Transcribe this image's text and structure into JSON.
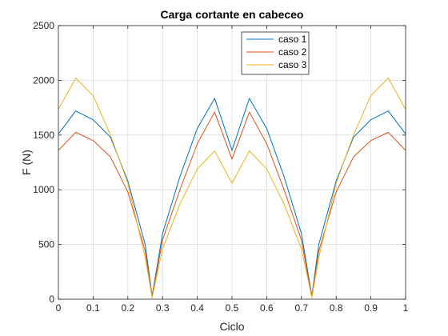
{
  "chart_data": {
    "type": "line",
    "title": "Carga cortante en cabeceo",
    "xlabel": "Ciclo",
    "ylabel": "F (N)",
    "xlim": [
      0,
      1
    ],
    "ylim": [
      0,
      2500
    ],
    "xticks": [
      0,
      0.1,
      0.2,
      0.3,
      0.4,
      0.5,
      0.6,
      0.7,
      0.8,
      0.9,
      1
    ],
    "xtick_labels": [
      "0",
      "0.1",
      "0.2",
      "0.3",
      "0.4",
      "0.5",
      "0.6",
      "0.7",
      "0.8",
      "0.9",
      "1"
    ],
    "yticks": [
      0,
      500,
      1000,
      1500,
      2000,
      2500
    ],
    "ytick_labels": [
      "0",
      "500",
      "1000",
      "1500",
      "2000",
      "2500"
    ],
    "grid": true,
    "legend_position": "top-right",
    "series": [
      {
        "name": "caso 1",
        "color": "#0072BD",
        "x": [
          0,
          0.05,
          0.1,
          0.15,
          0.2,
          0.25,
          0.27,
          0.3,
          0.35,
          0.4,
          0.45,
          0.5,
          0.55,
          0.6,
          0.65,
          0.7,
          0.73,
          0.75,
          0.8,
          0.85,
          0.9,
          0.95,
          1
        ],
        "y": [
          1510,
          1720,
          1640,
          1480,
          1080,
          500,
          30,
          600,
          1120,
          1560,
          1835,
          1360,
          1835,
          1560,
          1120,
          600,
          30,
          500,
          1080,
          1480,
          1640,
          1720,
          1510
        ]
      },
      {
        "name": "caso 2",
        "color": "#D95319",
        "x": [
          0,
          0.05,
          0.1,
          0.15,
          0.2,
          0.25,
          0.27,
          0.3,
          0.35,
          0.4,
          0.45,
          0.5,
          0.55,
          0.6,
          0.65,
          0.7,
          0.73,
          0.75,
          0.8,
          0.85,
          0.9,
          0.95,
          1
        ],
        "y": [
          1360,
          1525,
          1450,
          1300,
          980,
          440,
          20,
          540,
          1000,
          1420,
          1710,
          1280,
          1710,
          1420,
          1000,
          540,
          20,
          440,
          980,
          1300,
          1450,
          1525,
          1360
        ]
      },
      {
        "name": "caso 3",
        "color": "#EDB120",
        "x": [
          0,
          0.05,
          0.1,
          0.15,
          0.2,
          0.25,
          0.27,
          0.3,
          0.35,
          0.4,
          0.45,
          0.5,
          0.55,
          0.6,
          0.65,
          0.7,
          0.73,
          0.75,
          0.8,
          0.85,
          0.9,
          0.95,
          1
        ],
        "y": [
          1735,
          2020,
          1860,
          1500,
          1060,
          380,
          15,
          460,
          870,
          1190,
          1355,
          1060,
          1355,
          1190,
          870,
          460,
          15,
          380,
          1060,
          1500,
          1860,
          2020,
          1735
        ]
      }
    ]
  }
}
